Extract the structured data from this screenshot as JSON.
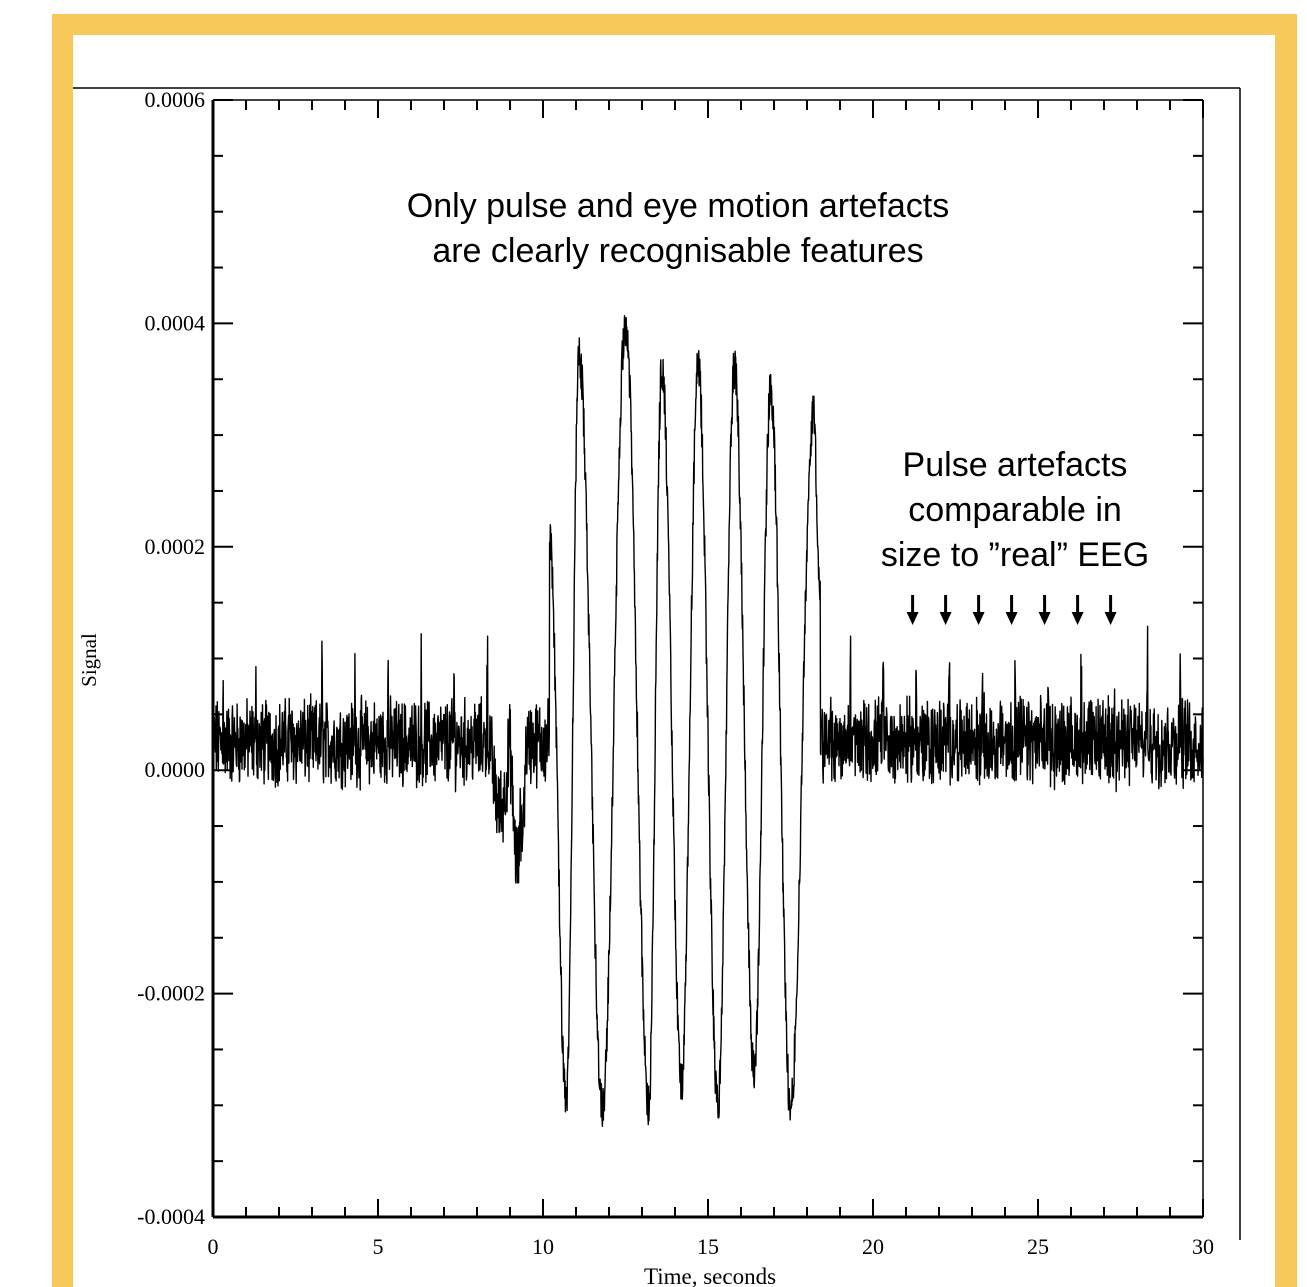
{
  "chart_data": {
    "type": "line",
    "title": "",
    "xlabel": "Time, seconds",
    "ylabel": "Signal",
    "xlim": [
      0,
      30
    ],
    "ylim": [
      -0.0004,
      0.0006
    ],
    "x_ticks": [
      "0",
      "5",
      "10",
      "15",
      "20",
      "25",
      "30"
    ],
    "y_ticks": [
      "0.0006",
      "0.0004",
      "0.0002",
      "0.0000",
      "-0.0002",
      "-0.0004"
    ],
    "grid": false,
    "annotations": [
      {
        "lines": [
          "Only pulse and eye motion artefacts",
          "are clearly recognisable features"
        ]
      },
      {
        "lines": [
          "Pulse artefacts",
          "comparable in",
          "size to ”real” EEG"
        ]
      }
    ],
    "pulse_arrow_times": [
      21.2,
      22.2,
      23.2,
      24.2,
      25.2,
      26.2,
      27.2
    ],
    "eye_motion_peaks": [
      {
        "x": 10.2,
        "y": 0.00021
      },
      {
        "x": 10.7,
        "y": -0.0003
      },
      {
        "x": 11.1,
        "y": 0.00037
      },
      {
        "x": 11.8,
        "y": -0.0003
      },
      {
        "x": 12.5,
        "y": 0.0004
      },
      {
        "x": 13.2,
        "y": -0.0003
      },
      {
        "x": 13.6,
        "y": 0.00036
      },
      {
        "x": 14.2,
        "y": -0.00028
      },
      {
        "x": 14.7,
        "y": 0.00036
      },
      {
        "x": 15.3,
        "y": -0.0003
      },
      {
        "x": 15.8,
        "y": 0.00036
      },
      {
        "x": 16.4,
        "y": -0.00027
      },
      {
        "x": 16.9,
        "y": 0.00034
      },
      {
        "x": 17.5,
        "y": -0.0003
      },
      {
        "x": 18.2,
        "y": 0.00032
      },
      {
        "x": 18.4,
        "y": 0.00015
      }
    ],
    "series": [
      {
        "color": "#000000"
      }
    ]
  }
}
